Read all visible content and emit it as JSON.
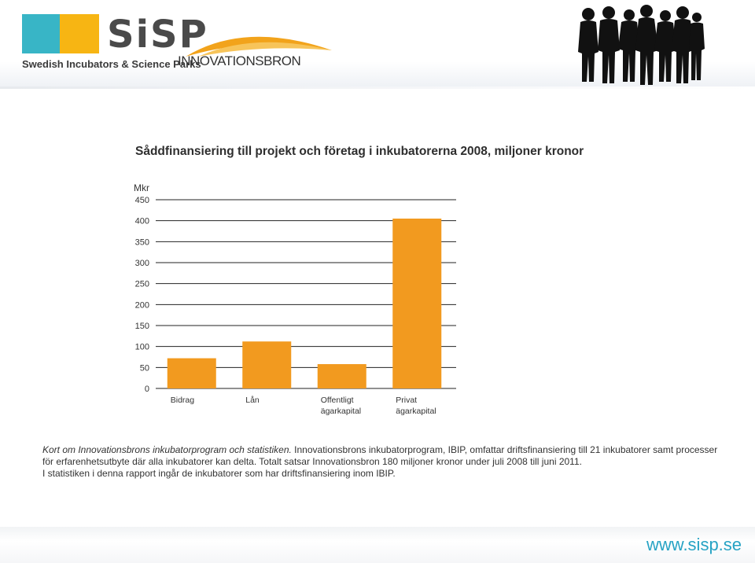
{
  "header": {
    "sisp_logo_text": "SiSP",
    "sisp_logo_subtitle": "Swedish Incubators & Science Parks",
    "innovationsbron_logo_text": "INNOVATIONSBRON",
    "sisp_colors": {
      "teal": "#38b5c6",
      "yellow": "#f7b513"
    },
    "people_icon": "people-silhouettes-icon"
  },
  "chart_data": {
    "type": "bar",
    "title": "Såddfinansiering till projekt och företag i inkubatorerna 2008, miljoner kronor",
    "ylabel": "Mkr",
    "xlabel": "",
    "ylim": [
      0,
      450
    ],
    "yticks": [
      0,
      50,
      100,
      150,
      200,
      250,
      300,
      350,
      400,
      450
    ],
    "categories": [
      [
        "Bidrag"
      ],
      [
        "Lån"
      ],
      [
        "Offentligt",
        "ägarkapital"
      ],
      [
        "Privat",
        "ägarkapital"
      ]
    ],
    "values": [
      72,
      112,
      58,
      405
    ],
    "bar_color": "#f29a1f",
    "grid": true,
    "legend": "none"
  },
  "caption": {
    "lead": "Kort om Innovationsbrons inkubatorprogram och statistiken.",
    "body": " Innovationsbrons inkubatorprogram, IBIP, omfattar driftsfinansiering till 21 inkubatorer samt processer för erfarenhetsutbyte där alla inkubatorer kan delta. Totalt satsar Innovationsbron 180 miljoner kronor under juli 2008 till juni 2011.",
    "line2": "I statistiken i denna rapport ingår de inkubatorer som har driftsfinansiering inom IBIP."
  },
  "footer": {
    "url": "www.sisp.se"
  }
}
